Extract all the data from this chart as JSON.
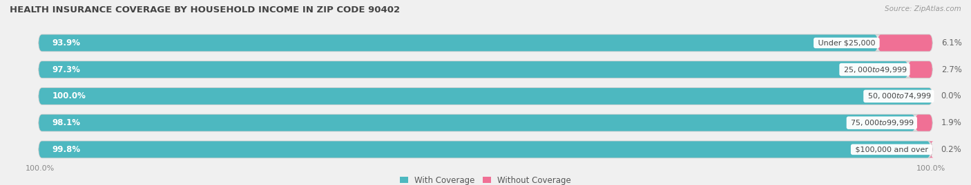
{
  "title": "HEALTH INSURANCE COVERAGE BY HOUSEHOLD INCOME IN ZIP CODE 90402",
  "source": "Source: ZipAtlas.com",
  "categories": [
    "Under $25,000",
    "$25,000 to $49,999",
    "$50,000 to $74,999",
    "$75,000 to $99,999",
    "$100,000 and over"
  ],
  "with_coverage": [
    93.9,
    97.3,
    100.0,
    98.1,
    99.8
  ],
  "without_coverage": [
    6.1,
    2.7,
    0.0,
    1.9,
    0.2
  ],
  "color_with": "#4db8c0",
  "color_without": "#f07095",
  "bg_color": "#f0f0f0",
  "bar_bg_color": "#e2e2e2",
  "title_fontsize": 9.5,
  "label_fontsize": 8.5,
  "cat_fontsize": 8.0,
  "tick_fontsize": 8.0,
  "legend_fontsize": 8.5
}
